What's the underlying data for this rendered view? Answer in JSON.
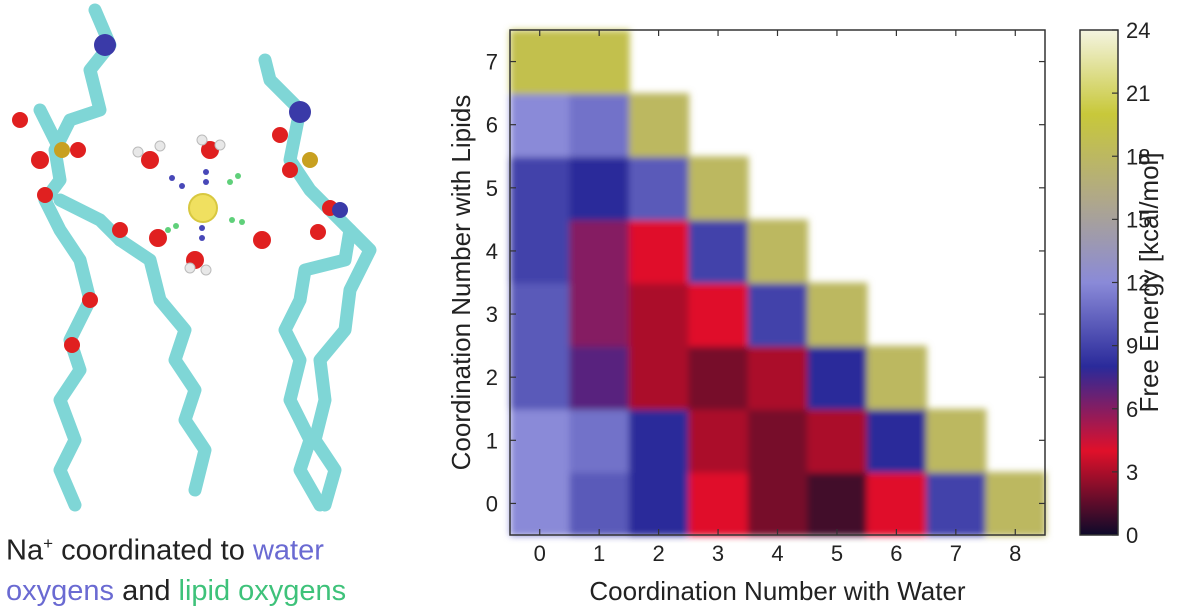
{
  "caption": {
    "ion": "Na",
    "charge": "+",
    "line1_text": " coordinated to ",
    "water_word": "water",
    "line2_water_rest": "oxygens",
    "and_word": " and ",
    "lipid_word": "lipid oxygens",
    "colors": {
      "text": "#222222",
      "water": "#6a6ad2",
      "lipid": "#3ec27a"
    }
  },
  "chart_data": {
    "type": "heatmap",
    "xlabel": "Coordination Number with Water",
    "ylabel": "Coordination Number with Lipids",
    "colorbar_label": "Free Energy [kcal/mol]",
    "xlim": [
      -0.5,
      8.5
    ],
    "ylim": [
      -0.5,
      7.5
    ],
    "x_ticks": [
      0,
      1,
      2,
      3,
      4,
      5,
      6,
      7,
      8
    ],
    "y_ticks": [
      0,
      1,
      2,
      3,
      4,
      5,
      6,
      7
    ],
    "colorbar_range": [
      0,
      24
    ],
    "colorbar_ticks": [
      0,
      3,
      6,
      9,
      12,
      15,
      18,
      21,
      24
    ],
    "colormap": [
      "#0d0a2a",
      "#e0102a",
      "#2a2a9a",
      "#8a8ad8",
      "#b0a888",
      "#c8c83a",
      "#f4f4e0"
    ],
    "x": [
      0,
      1,
      2,
      3,
      4,
      5,
      6,
      7,
      8
    ],
    "y": [
      0,
      1,
      2,
      3,
      4,
      5,
      6,
      7
    ],
    "z": [
      [
        12,
        10,
        8,
        4,
        2,
        1,
        4,
        9,
        18
      ],
      [
        12,
        11,
        8,
        3,
        2,
        3,
        8,
        18,
        null
      ],
      [
        10,
        7,
        3,
        2,
        3,
        8,
        18,
        null,
        null
      ],
      [
        10,
        6,
        3,
        4,
        9,
        18,
        null,
        null,
        null
      ],
      [
        9,
        6,
        4,
        9,
        18,
        null,
        null,
        null,
        null
      ],
      [
        9,
        8,
        10,
        18,
        null,
        null,
        null,
        null,
        null
      ],
      [
        12,
        11,
        18,
        null,
        null,
        null,
        null,
        null,
        null
      ],
      [
        19,
        19,
        null,
        null,
        null,
        null,
        null,
        null,
        null
      ]
    ]
  }
}
